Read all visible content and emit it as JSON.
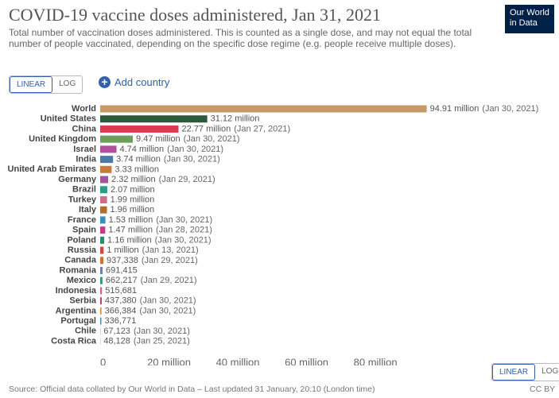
{
  "chart_data": {
    "type": "bar",
    "orientation": "horizontal",
    "title": "COVID-19 vaccine doses administered, Jan 31, 2021",
    "subtitle": "Total number of vaccination doses administered. This is counted as a single dose, and may not equal the total number of people vaccinated, depending on the specific dose regime (e.g. people receive multiple doses).",
    "logo": [
      "Our World",
      "in Data"
    ],
    "scale_buttons": [
      "LINEAR",
      "LOG"
    ],
    "add_country": "Add country",
    "source": "Source: Official data collated by Our World in Data – Last updated 31 January, 20:10 (London time)",
    "license": "CC BY",
    "categories": [
      "World",
      "United States",
      "China",
      "United Kingdom",
      "Israel",
      "India",
      "United Arab Emirates",
      "Germany",
      "Brazil",
      "Turkey",
      "Italy",
      "France",
      "Spain",
      "Poland",
      "Russia",
      "Canada",
      "Romania",
      "Mexico",
      "Indonesia",
      "Serbia",
      "Argentina",
      "Portugal",
      "Chile",
      "Costa Rica"
    ],
    "values": [
      94910000,
      31120000,
      22770000,
      9470000,
      4740000,
      3740000,
      3330000,
      2320000,
      2070000,
      1990000,
      1960000,
      1530000,
      1470000,
      1160000,
      1000000,
      937338,
      691415,
      662217,
      515681,
      437380,
      366384,
      336771,
      67123,
      48128
    ],
    "value_labels": [
      "94.91 million",
      "31.12 million",
      "22.77 million",
      "9.47 million",
      "4.74 million",
      "3.74 million",
      "3.33 million",
      "2.32 million",
      "2.07 million",
      "1.99 million",
      "1.96 million",
      "1.53 million",
      "1.47 million",
      "1.16 million",
      "1 million",
      "937,338",
      "691,415",
      "662,217",
      "515,681",
      "437,380",
      "366,384",
      "336,771",
      "67,123",
      "48,128"
    ],
    "dates": [
      "(Jan 30, 2021)",
      null,
      "(Jan 27, 2021)",
      "(Jan 30, 2021)",
      "(Jan 30, 2021)",
      "(Jan 30, 2021)",
      null,
      "(Jan 29, 2021)",
      null,
      null,
      null,
      "(Jan 30, 2021)",
      "(Jan 28, 2021)",
      "(Jan 30, 2021)",
      "(Jan 13, 2021)",
      "(Jan 29, 2021)",
      null,
      "(Jan 29, 2021)",
      null,
      "(Jan 30, 2021)",
      "(Jan 30, 2021)",
      null,
      "(Jan 30, 2021)",
      "(Jan 25, 2021)"
    ],
    "colors": [
      "#c59a66",
      "#2d5b3a",
      "#d73c50",
      "#6c9e5d",
      "#b14f9f",
      "#4c7aa3",
      "#c97b3a",
      "#a2559c",
      "#2a9c86",
      "#d06d8b",
      "#b26e2b",
      "#3b8dbf",
      "#c43a8b",
      "#2f8a6a",
      "#d9443f",
      "#d5702e",
      "#6d7fb0",
      "#2e9c6f",
      "#cc6b6f",
      "#b43b67",
      "#d68b38",
      "#4e84a7",
      "#9f6a3a",
      "#3a6d9b"
    ],
    "xlim": [
      0,
      95000000
    ],
    "xticks": [
      0,
      {
        "value": 20000000,
        "label": "20 million"
      },
      {
        "value": 40000000,
        "label": "40 million"
      },
      {
        "value": 60000000,
        "label": "60 million"
      },
      {
        "value": 80000000,
        "label": "80 million"
      }
    ]
  }
}
